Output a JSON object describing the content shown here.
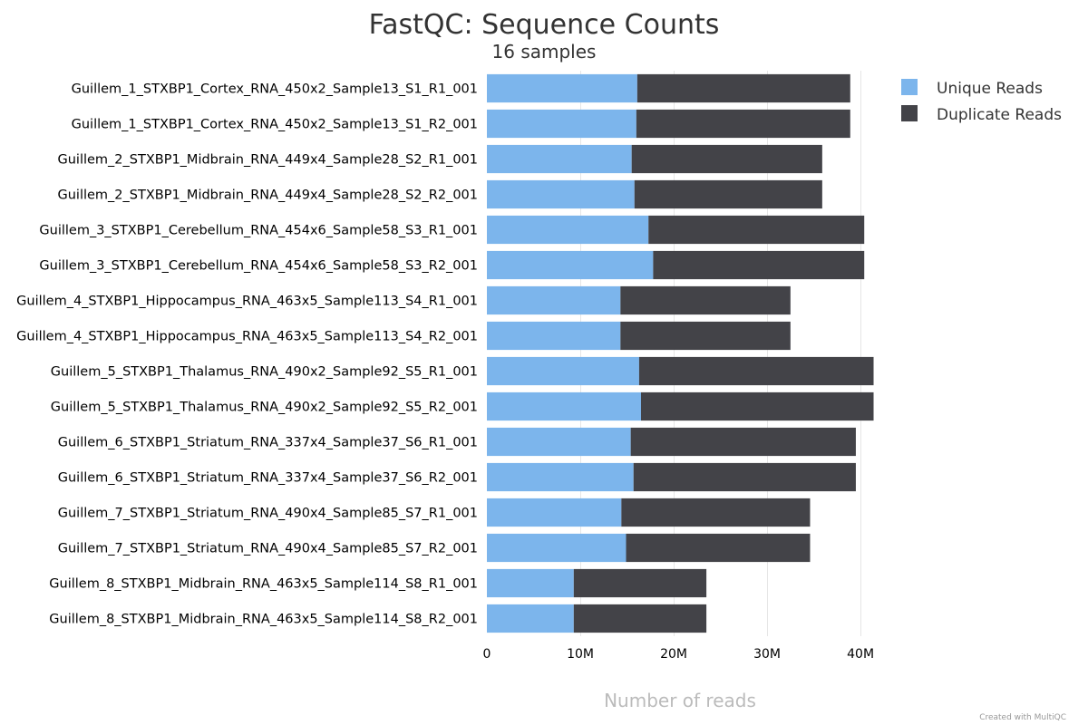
{
  "chart_data": {
    "type": "bar",
    "orientation": "horizontal",
    "stacked": true,
    "title": "FastQC: Sequence Counts",
    "subtitle": "16 samples",
    "xlabel": "Number of reads",
    "xlim": [
      0,
      43000000
    ],
    "ticks": [
      {
        "value": 0,
        "label": "0"
      },
      {
        "value": 10000000,
        "label": "10M"
      },
      {
        "value": 20000000,
        "label": "20M"
      },
      {
        "value": 30000000,
        "label": "30M"
      },
      {
        "value": 40000000,
        "label": "40M"
      }
    ],
    "grid": true,
    "legend_position": "top-right",
    "categories": [
      "Guillem_1_STXBP1_Cortex_RNA_450x2_Sample13_S1_R1_001",
      "Guillem_1_STXBP1_Cortex_RNA_450x2_Sample13_S1_R2_001",
      "Guillem_2_STXBP1_Midbrain_RNA_449x4_Sample28_S2_R1_001",
      "Guillem_2_STXBP1_Midbrain_RNA_449x4_Sample28_S2_R2_001",
      "Guillem_3_STXBP1_Cerebellum_RNA_454x6_Sample58_S3_R1_001",
      "Guillem_3_STXBP1_Cerebellum_RNA_454x6_Sample58_S3_R2_001",
      "Guillem_4_STXBP1_Hippocampus_RNA_463x5_Sample113_S4_R1_001",
      "Guillem_4_STXBP1_Hippocampus_RNA_463x5_Sample113_S4_R2_001",
      "Guillem_5_STXBP1_Thalamus_RNA_490x2_Sample92_S5_R1_001",
      "Guillem_5_STXBP1_Thalamus_RNA_490x2_Sample92_S5_R2_001",
      "Guillem_6_STXBP1_Striatum_RNA_337x4_Sample37_S6_R1_001",
      "Guillem_6_STXBP1_Striatum_RNA_337x4_Sample37_S6_R2_001",
      "Guillem_7_STXBP1_Striatum_RNA_490x4_Sample85_S7_R1_001",
      "Guillem_7_STXBP1_Striatum_RNA_490x4_Sample85_S7_R2_001",
      "Guillem_8_STXBP1_Midbrain_RNA_463x5_Sample114_S8_R1_001",
      "Guillem_8_STXBP1_Midbrain_RNA_463x5_Sample114_S8_R2_001"
    ],
    "series": [
      {
        "name": "Unique Reads",
        "color": "#7cb5ec",
        "values": [
          16100000,
          16000000,
          15500000,
          15800000,
          17300000,
          17800000,
          14300000,
          14300000,
          16300000,
          16500000,
          15400000,
          15700000,
          14400000,
          14900000,
          9300000,
          9300000
        ]
      },
      {
        "name": "Duplicate Reads",
        "color": "#434348",
        "values": [
          22800000,
          22900000,
          20400000,
          20100000,
          23100000,
          22600000,
          18200000,
          18200000,
          25100000,
          24900000,
          24100000,
          23800000,
          20200000,
          19700000,
          14200000,
          14200000
        ]
      }
    ]
  },
  "credits": "Created with MultiQC"
}
